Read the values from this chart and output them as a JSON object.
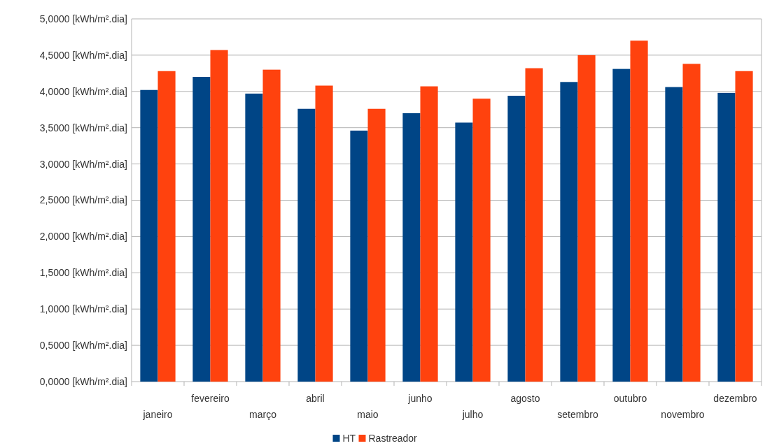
{
  "chart_data": {
    "type": "bar",
    "categories": [
      "janeiro",
      "fevereiro",
      "março",
      "abril",
      "maio",
      "junho",
      "julho",
      "agosto",
      "setembro",
      "outubro",
      "novembro",
      "dezembro"
    ],
    "series": [
      {
        "name": "HT",
        "color": "#004586",
        "values": [
          4.02,
          4.2,
          3.97,
          3.76,
          3.46,
          3.7,
          3.57,
          3.94,
          4.13,
          4.31,
          4.06,
          3.98
        ]
      },
      {
        "name": "Rastreador",
        "color": "#ff420e",
        "values": [
          4.28,
          4.57,
          4.3,
          4.08,
          3.76,
          4.07,
          3.9,
          4.32,
          4.5,
          4.7,
          4.38,
          4.28
        ]
      }
    ],
    "ylim": [
      0,
      5
    ],
    "yticks": [
      {
        "value": 0,
        "label": "0,0000 [kWh/m².dia]"
      },
      {
        "value": 0.5,
        "label": "0,5000 [kWh/m².dia]"
      },
      {
        "value": 1,
        "label": "1,0000 [kWh/m².dia]"
      },
      {
        "value": 1.5,
        "label": "1,5000 [kWh/m².dia]"
      },
      {
        "value": 2,
        "label": "2,0000 [kWh/m².dia]"
      },
      {
        "value": 2.5,
        "label": "2,5000 [kWh/m².dia]"
      },
      {
        "value": 3,
        "label": "3,0000 [kWh/m².dia]"
      },
      {
        "value": 3.5,
        "label": "3,5000 [kWh/m².dia]"
      },
      {
        "value": 4,
        "label": "4,0000 [kWh/m².dia]"
      },
      {
        "value": 4.5,
        "label": "4,5000 [kWh/m².dia]"
      },
      {
        "value": 5,
        "label": "5,0000 [kWh/m².dia]"
      }
    ],
    "grid": "y",
    "legend": "bottom"
  }
}
